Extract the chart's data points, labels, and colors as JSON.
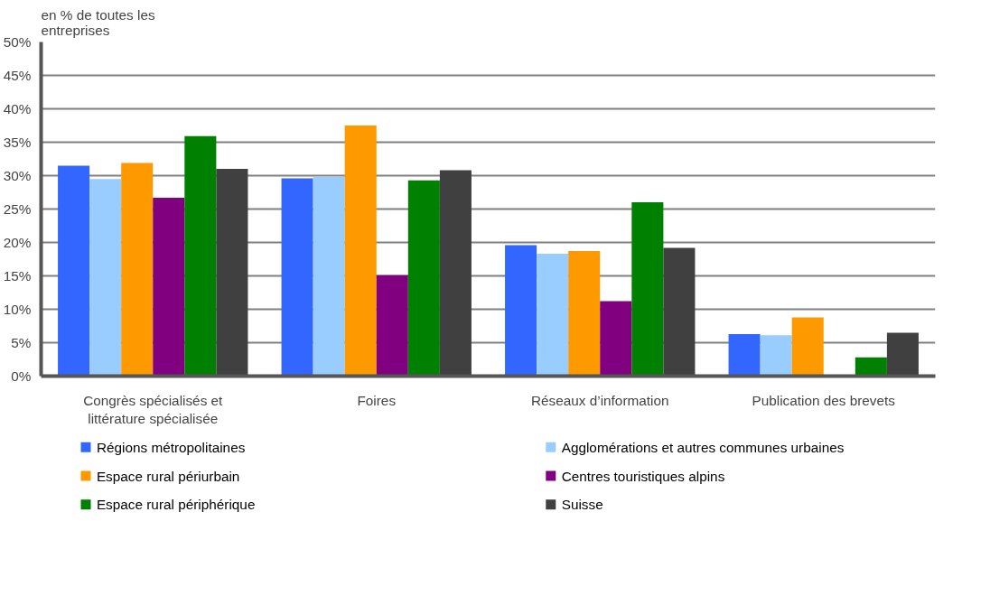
{
  "chart_data": {
    "type": "bar",
    "ylabel": "en % de toutes les entreprises",
    "categories": [
      "Congrès spécialisés et littérature spécialisée",
      "Foires",
      "Réseaux d’information",
      "Publication des brevets"
    ],
    "series": [
      {
        "name": "Régions métropolitaines",
        "color": "#3366ff",
        "values": [
          31.5,
          29.6,
          19.6,
          6.3
        ]
      },
      {
        "name": "Agglomérations et autres communes urbaines",
        "color": "#99ccff",
        "values": [
          29.5,
          29.8,
          18.3,
          6.1
        ]
      },
      {
        "name": "Espace rural périurbain",
        "color": "#ff9900",
        "values": [
          31.9,
          37.5,
          18.7,
          8.8
        ]
      },
      {
        "name": "Centres touristiques alpins",
        "color": "#800080",
        "values": [
          26.7,
          15.1,
          11.2,
          null
        ]
      },
      {
        "name": "Espace rural périphérique",
        "color": "#008000",
        "values": [
          35.9,
          29.3,
          26.0,
          2.8
        ]
      },
      {
        "name": "Suisse",
        "color": "#404040",
        "values": [
          31.0,
          30.8,
          19.2,
          6.5
        ]
      }
    ],
    "ylim": [
      0,
      50
    ],
    "yticks": [
      {
        "value": 0,
        "label": "0%"
      },
      {
        "value": 5,
        "label": "5%"
      },
      {
        "value": 10,
        "label": "10%"
      },
      {
        "value": 15,
        "label": "15%"
      },
      {
        "value": 20,
        "label": "20%"
      },
      {
        "value": 25,
        "label": "25%"
      },
      {
        "value": 30,
        "label": "30%"
      },
      {
        "value": 35,
        "label": "35%"
      },
      {
        "value": 40,
        "label": "40%"
      },
      {
        "value": 45,
        "label": "45%"
      },
      {
        "value": 50,
        "label": "50%"
      }
    ],
    "grid": "y",
    "legend": "bottom"
  }
}
